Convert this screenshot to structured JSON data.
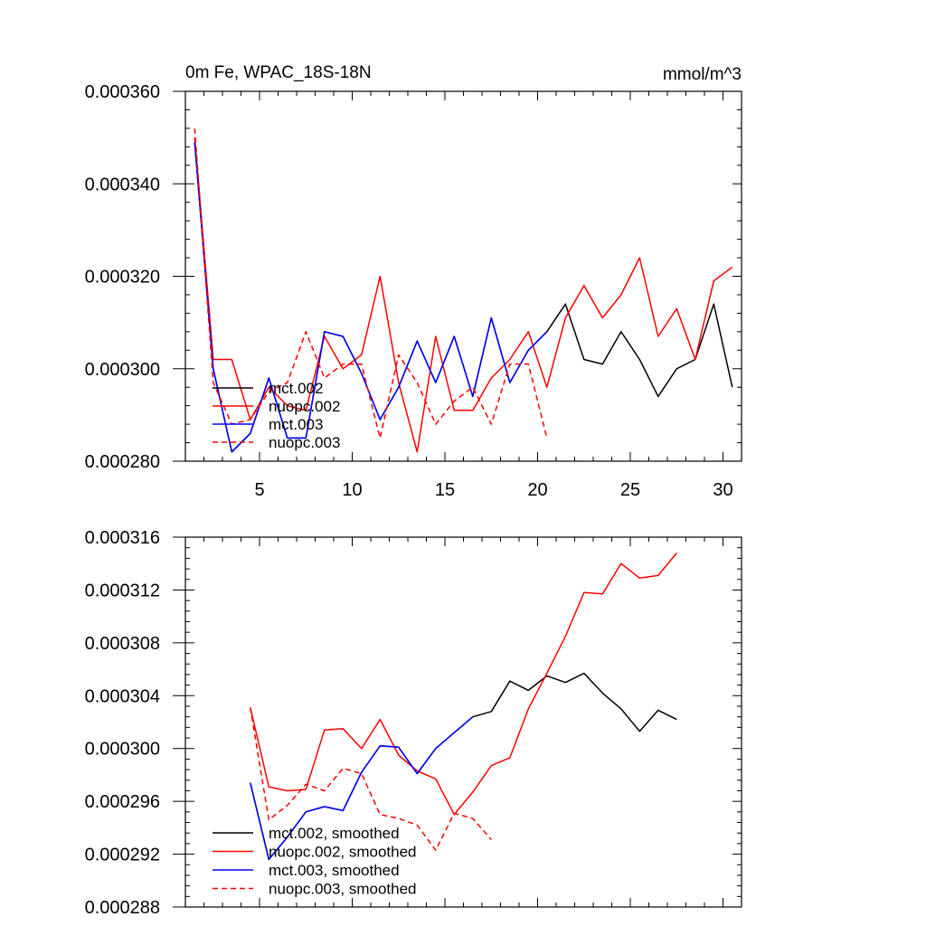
{
  "chart_data": [
    {
      "type": "line",
      "title": "0m Fe, WPAC_18S-18N",
      "units": "mmol/m^3",
      "xlim": [
        1,
        31
      ],
      "ylim": [
        0.00028,
        0.00036
      ],
      "xticks": [
        5,
        10,
        15,
        20,
        25,
        30
      ],
      "xtick_labels": [
        "5",
        "10",
        "15",
        "20",
        "25",
        "30"
      ],
      "yticks": [
        0.00028,
        0.0003,
        0.00032,
        0.00034,
        0.00036
      ],
      "ytick_labels": [
        "0.000280",
        "0.000300",
        "0.000320",
        "0.000340",
        "0.000360"
      ],
      "legend": "lower-left",
      "series": [
        {
          "name": "mct.002",
          "color": "#000000",
          "dash": false,
          "x": [
            1.5,
            2.5,
            3.5,
            4.5,
            5.5,
            6.5,
            7.5,
            8.5,
            9.5,
            10.5,
            11.5,
            12.5,
            13.5,
            14.5,
            15.5,
            16.5,
            17.5,
            18.5,
            19.5,
            20.5,
            21.5,
            22.5,
            23.5,
            24.5,
            25.5,
            26.5,
            27.5,
            28.5,
            29.5,
            30.5
          ],
          "values": [
            0.000349,
            0.0003,
            0.000282,
            0.000286,
            0.000298,
            0.000285,
            0.000285,
            0.000308,
            0.000307,
            0.000299,
            0.000289,
            0.000296,
            0.000306,
            0.000297,
            0.000307,
            0.000294,
            0.000311,
            0.000297,
            0.000304,
            0.000308,
            0.000314,
            0.000302,
            0.000301,
            0.000308,
            0.000302,
            0.000294,
            0.0003,
            0.000302,
            0.000314,
            0.000296
          ]
        },
        {
          "name": "nuopc.002",
          "color": "#ff0000",
          "dash": false,
          "x": [
            1.5,
            2.5,
            3.5,
            4.5,
            5.5,
            6.5,
            7.5,
            8.5,
            9.5,
            10.5,
            11.5,
            12.5,
            13.5,
            14.5,
            15.5,
            16.5,
            17.5,
            18.5,
            19.5,
            20.5,
            21.5,
            22.5,
            23.5,
            24.5,
            25.5,
            26.5,
            27.5,
            28.5,
            29.5,
            30.5
          ],
          "values": [
            0.00035,
            0.000302,
            0.000302,
            0.000289,
            0.000296,
            0.000292,
            0.000291,
            0.000307,
            0.0003,
            0.000303,
            0.00032,
            0.000297,
            0.000282,
            0.000307,
            0.000291,
            0.000291,
            0.000298,
            0.000302,
            0.000308,
            0.000296,
            0.000311,
            0.000318,
            0.000311,
            0.000316,
            0.000324,
            0.000307,
            0.000313,
            0.000302,
            0.000319,
            0.000322
          ]
        },
        {
          "name": "mct.003",
          "color": "#0000ff",
          "dash": false,
          "x": [
            1.5,
            2.5,
            3.5,
            4.5,
            5.5,
            6.5,
            7.5,
            8.5,
            9.5,
            10.5,
            11.5,
            12.5,
            13.5,
            14.5,
            15.5,
            16.5,
            17.5,
            18.5,
            19.5,
            20.5
          ],
          "values": [
            0.000349,
            0.0003,
            0.000282,
            0.000286,
            0.000298,
            0.000285,
            0.000285,
            0.000308,
            0.000307,
            0.000299,
            0.000289,
            0.000296,
            0.000306,
            0.000297,
            0.000307,
            0.000294,
            0.000311,
            0.000297,
            0.000304,
            0.000308
          ]
        },
        {
          "name": "nuopc.003",
          "color": "#ff0000",
          "dash": true,
          "x": [
            1.5,
            2.5,
            3.5,
            4.5,
            5.5,
            6.5,
            7.5,
            8.5,
            9.5,
            10.5,
            11.5,
            12.5,
            13.5,
            14.5,
            15.5,
            16.5,
            17.5,
            18.5,
            19.5,
            20.5
          ],
          "values": [
            0.000352,
            0.000297,
            0.000288,
            0.000289,
            0.000295,
            0.000297,
            0.000308,
            0.000298,
            0.000301,
            0.000301,
            0.000285,
            0.000303,
            0.000297,
            0.000288,
            0.000293,
            0.000296,
            0.000288,
            0.000301,
            0.000301,
            0.000285
          ]
        }
      ]
    },
    {
      "type": "line",
      "title": "",
      "xlim": [
        1,
        31
      ],
      "ylim": [
        0.000288,
        0.000316
      ],
      "xticks": [
        5,
        10,
        15,
        20,
        25,
        30
      ],
      "xtick_labels": [],
      "yticks": [
        0.000288,
        0.000292,
        0.000296,
        0.0003,
        0.000304,
        0.000308,
        0.000312,
        0.000316
      ],
      "ytick_labels": [
        "0.000288",
        "0.000292",
        "0.000296",
        "0.000300",
        "0.000304",
        "0.000308",
        "0.000312",
        "0.000316"
      ],
      "legend": "lower-left",
      "series": [
        {
          "name": "mct.002, smoothed",
          "color": "#000000",
          "dash": false,
          "x": [
            4.5,
            5.5,
            6.5,
            7.5,
            8.5,
            9.5,
            10.5,
            11.5,
            12.5,
            13.5,
            14.5,
            15.5,
            16.5,
            17.5,
            18.5,
            19.5,
            20.5,
            21.5,
            22.5,
            23.5,
            24.5,
            25.5,
            26.5,
            27.5
          ],
          "values": [
            0.0002974,
            0.0002916,
            0.0002933,
            0.0002952,
            0.0002956,
            0.0002953,
            0.0002982,
            0.0003002,
            0.0003001,
            0.0002981,
            0.0003,
            0.0003012,
            0.0003024,
            0.0003028,
            0.0003051,
            0.0003044,
            0.0003055,
            0.000305,
            0.0003057,
            0.0003042,
            0.000303,
            0.0003013,
            0.0003029,
            0.0003022
          ]
        },
        {
          "name": "nuopc.002, smoothed",
          "color": "#ff0000",
          "dash": false,
          "x": [
            4.5,
            5.5,
            6.5,
            7.5,
            8.5,
            9.5,
            10.5,
            11.5,
            12.5,
            13.5,
            14.5,
            15.5,
            16.5,
            17.5,
            18.5,
            19.5,
            20.5,
            21.5,
            22.5,
            23.5,
            24.5,
            25.5,
            26.5,
            27.5
          ],
          "values": [
            0.0003031,
            0.0002971,
            0.0002968,
            0.0002969,
            0.0003014,
            0.0003015,
            0.0003,
            0.0003022,
            0.0002995,
            0.0002983,
            0.0002977,
            0.000295,
            0.0002967,
            0.0002987,
            0.0002993,
            0.000303,
            0.0003057,
            0.0003085,
            0.0003118,
            0.0003117,
            0.000314,
            0.0003129,
            0.0003131,
            0.0003148
          ]
        },
        {
          "name": "mct.003, smoothed",
          "color": "#0000ff",
          "dash": false,
          "x": [
            4.5,
            5.5,
            6.5,
            7.5,
            8.5,
            9.5,
            10.5,
            11.5,
            12.5,
            13.5,
            14.5,
            15.5,
            16.5
          ],
          "values": [
            0.0002974,
            0.0002916,
            0.0002933,
            0.0002952,
            0.0002956,
            0.0002953,
            0.0002982,
            0.0003002,
            0.0003001,
            0.0002981,
            0.0003,
            0.0003012,
            0.0003024
          ]
        },
        {
          "name": "nuopc.003, smoothed",
          "color": "#ff0000",
          "dash": true,
          "x": [
            4.5,
            5.5,
            6.5,
            7.5,
            8.5,
            9.5,
            10.5,
            11.5,
            12.5,
            13.5,
            14.5,
            15.5,
            16.5,
            17.5
          ],
          "values": [
            0.0003031,
            0.0002946,
            0.0002957,
            0.0002973,
            0.0002968,
            0.0002985,
            0.0002981,
            0.000295,
            0.0002947,
            0.0002942,
            0.0002923,
            0.0002951,
            0.0002947,
            0.0002931
          ]
        }
      ]
    }
  ]
}
